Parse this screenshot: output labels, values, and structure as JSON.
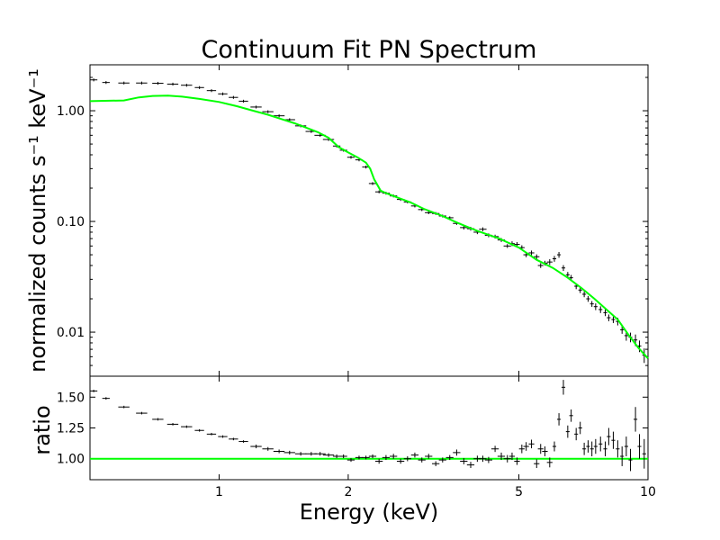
{
  "chart_data": [
    {
      "type": "scatter",
      "panel": "spectrum",
      "title": "Continuum Fit PN Spectrum",
      "ylabel": "normalized counts s⁻¹ keV⁻¹",
      "yscale": "log",
      "xscale": "log",
      "xlim": [
        0.5,
        10
      ],
      "ylim": [
        0.004,
        2.6
      ],
      "yticks": [
        0.01,
        0.1,
        1.0
      ],
      "ytick_labels": [
        "0.01",
        "0.10",
        "1.00"
      ],
      "grid": false,
      "colors": {
        "data": "#000000",
        "model": "#00ff00"
      },
      "series": [
        {
          "kind": "data-errorbars",
          "points": [
            [
              0.51,
              1.9,
              0.02,
              0.03
            ],
            [
              0.545,
              1.8,
              0.02,
              0.03
            ],
            [
              0.6,
              1.78,
              0.03,
              0.03
            ],
            [
              0.66,
              1.78,
              0.03,
              0.03
            ],
            [
              0.72,
              1.77,
              0.03,
              0.03
            ],
            [
              0.78,
              1.74,
              0.03,
              0.03
            ],
            [
              0.84,
              1.7,
              0.03,
              0.03
            ],
            [
              0.9,
              1.62,
              0.025,
              0.03
            ],
            [
              0.96,
              1.52,
              0.025,
              0.03
            ],
            [
              1.02,
              1.42,
              0.025,
              0.03
            ],
            [
              1.08,
              1.32,
              0.025,
              0.03
            ],
            [
              1.14,
              1.22,
              0.025,
              0.03
            ],
            [
              1.22,
              1.08,
              0.03,
              0.03
            ],
            [
              1.3,
              0.98,
              0.03,
              0.03
            ],
            [
              1.38,
              0.9,
              0.03,
              0.03
            ],
            [
              1.46,
              0.83,
              0.03,
              0.03
            ],
            [
              1.55,
              0.73,
              0.03,
              0.03
            ],
            [
              1.64,
              0.65,
              0.03,
              0.03
            ],
            [
              1.72,
              0.6,
              0.03,
              0.03
            ],
            [
              1.8,
              0.55,
              0.03,
              0.03
            ],
            [
              1.88,
              0.48,
              0.02,
              0.03
            ],
            [
              1.95,
              0.44,
              0.02,
              0.03
            ],
            [
              2.03,
              0.38,
              0.02,
              0.03
            ],
            [
              2.12,
              0.36,
              0.02,
              0.03
            ],
            [
              2.2,
              0.31,
              0.02,
              0.03
            ],
            [
              2.28,
              0.22,
              0.02,
              0.03
            ],
            [
              2.36,
              0.185,
              0.02,
              0.03
            ],
            [
              2.45,
              0.18,
              0.02,
              0.03
            ],
            [
              2.55,
              0.17,
              0.02,
              0.03
            ],
            [
              2.65,
              0.158,
              0.02,
              0.03
            ],
            [
              2.75,
              0.15,
              0.02,
              0.03
            ],
            [
              2.86,
              0.138,
              0.02,
              0.03
            ],
            [
              2.97,
              0.128,
              0.02,
              0.03
            ],
            [
              3.08,
              0.12,
              0.02,
              0.03
            ],
            [
              3.2,
              0.118,
              0.02,
              0.03
            ],
            [
              3.32,
              0.112,
              0.02,
              0.03
            ],
            [
              3.45,
              0.108,
              0.02,
              0.03
            ],
            [
              3.58,
              0.096,
              0.02,
              0.03
            ],
            [
              3.72,
              0.088,
              0.02,
              0.04
            ],
            [
              3.86,
              0.086,
              0.02,
              0.04
            ],
            [
              4.0,
              0.08,
              0.02,
              0.04
            ],
            [
              4.12,
              0.085,
              0.02,
              0.04
            ],
            [
              4.25,
              0.075,
              0.02,
              0.04
            ],
            [
              4.4,
              0.073,
              0.02,
              0.04
            ],
            [
              4.55,
              0.068,
              0.02,
              0.04
            ],
            [
              4.7,
              0.06,
              0.02,
              0.04
            ],
            [
              4.82,
              0.063,
              0.015,
              0.05
            ],
            [
              4.95,
              0.062,
              0.015,
              0.05
            ],
            [
              5.08,
              0.058,
              0.015,
              0.05
            ],
            [
              5.2,
              0.05,
              0.015,
              0.05
            ],
            [
              5.35,
              0.052,
              0.015,
              0.05
            ],
            [
              5.5,
              0.048,
              0.015,
              0.05
            ],
            [
              5.62,
              0.04,
              0.015,
              0.05
            ],
            [
              5.75,
              0.042,
              0.015,
              0.05
            ],
            [
              5.9,
              0.043,
              0.015,
              0.06
            ],
            [
              6.05,
              0.046,
              0.01,
              0.06
            ],
            [
              6.2,
              0.05,
              0.01,
              0.06
            ],
            [
              6.35,
              0.038,
              0.01,
              0.06
            ],
            [
              6.5,
              0.033,
              0.01,
              0.06
            ],
            [
              6.62,
              0.031,
              0.01,
              0.06
            ],
            [
              6.8,
              0.026,
              0.01,
              0.06
            ],
            [
              6.95,
              0.024,
              0.01,
              0.06
            ],
            [
              7.1,
              0.022,
              0.01,
              0.06
            ],
            [
              7.25,
              0.02,
              0.01,
              0.06
            ],
            [
              7.4,
              0.018,
              0.01,
              0.06
            ],
            [
              7.55,
              0.017,
              0.01,
              0.07
            ],
            [
              7.75,
              0.016,
              0.01,
              0.07
            ],
            [
              7.95,
              0.015,
              0.01,
              0.07
            ],
            [
              8.1,
              0.0135,
              0.01,
              0.07
            ],
            [
              8.3,
              0.013,
              0.01,
              0.07
            ],
            [
              8.5,
              0.0125,
              0.01,
              0.08
            ],
            [
              8.7,
              0.0105,
              0.01,
              0.08
            ],
            [
              8.9,
              0.0093,
              0.01,
              0.1
            ],
            [
              9.1,
              0.009,
              0.01,
              0.1
            ],
            [
              9.35,
              0.0085,
              0.01,
              0.12
            ],
            [
              9.55,
              0.0075,
              0.01,
              0.12
            ],
            [
              9.8,
              0.0062,
              0.01,
              0.15
            ]
          ]
        },
        {
          "kind": "model-line",
          "points": [
            [
              0.5,
              1.22
            ],
            [
              0.6,
              1.24
            ],
            [
              0.65,
              1.32
            ],
            [
              0.7,
              1.36
            ],
            [
              0.76,
              1.37
            ],
            [
              0.82,
              1.34
            ],
            [
              0.9,
              1.28
            ],
            [
              1.0,
              1.2
            ],
            [
              1.1,
              1.1
            ],
            [
              1.2,
              1.0
            ],
            [
              1.3,
              0.92
            ],
            [
              1.4,
              0.84
            ],
            [
              1.5,
              0.77
            ],
            [
              1.6,
              0.7
            ],
            [
              1.7,
              0.64
            ],
            [
              1.8,
              0.57
            ],
            [
              1.9,
              0.47
            ],
            [
              2.0,
              0.42
            ],
            [
              2.1,
              0.38
            ],
            [
              2.2,
              0.34
            ],
            [
              2.25,
              0.3
            ],
            [
              2.3,
              0.24
            ],
            [
              2.38,
              0.19
            ],
            [
              2.45,
              0.18
            ],
            [
              2.6,
              0.165
            ],
            [
              2.8,
              0.148
            ],
            [
              3.0,
              0.13
            ],
            [
              3.3,
              0.113
            ],
            [
              3.6,
              0.097
            ],
            [
              4.0,
              0.082
            ],
            [
              4.5,
              0.07
            ],
            [
              5.0,
              0.058
            ],
            [
              5.5,
              0.045
            ],
            [
              6.0,
              0.038
            ],
            [
              6.5,
              0.031
            ],
            [
              7.0,
              0.025
            ],
            [
              7.5,
              0.02
            ],
            [
              8.0,
              0.016
            ],
            [
              8.5,
              0.013
            ],
            [
              9.0,
              0.0095
            ],
            [
              9.5,
              0.0072
            ],
            [
              10.0,
              0.0058
            ]
          ]
        }
      ]
    },
    {
      "type": "scatter",
      "panel": "ratio",
      "xlabel": "Energy (keV)",
      "ylabel": "ratio",
      "xscale": "log",
      "xlim": [
        0.5,
        10
      ],
      "ylim": [
        0.83,
        1.67
      ],
      "xticks": [
        1,
        2,
        5,
        10
      ],
      "xtick_labels": [
        "1",
        "2",
        "5",
        "10"
      ],
      "yticks": [
        1.0,
        1.25,
        1.5
      ],
      "ytick_labels": [
        "1.00",
        "1.25",
        "1.50"
      ],
      "grid": false,
      "colors": {
        "data": "#000000",
        "model": "#00ff00"
      },
      "series": [
        {
          "kind": "data-errorbars",
          "points": [
            [
              0.51,
              1.55,
              0.01
            ],
            [
              0.545,
              1.49,
              0.01
            ],
            [
              0.6,
              1.42,
              0.01
            ],
            [
              0.66,
              1.37,
              0.01
            ],
            [
              0.72,
              1.32,
              0.01
            ],
            [
              0.78,
              1.28,
              0.01
            ],
            [
              0.84,
              1.26,
              0.01
            ],
            [
              0.9,
              1.23,
              0.01
            ],
            [
              0.96,
              1.2,
              0.01
            ],
            [
              1.02,
              1.18,
              0.01
            ],
            [
              1.08,
              1.16,
              0.01
            ],
            [
              1.14,
              1.14,
              0.01
            ],
            [
              1.22,
              1.1,
              0.015
            ],
            [
              1.3,
              1.08,
              0.015
            ],
            [
              1.38,
              1.06,
              0.015
            ],
            [
              1.46,
              1.05,
              0.015
            ],
            [
              1.55,
              1.04,
              0.015
            ],
            [
              1.64,
              1.04,
              0.015
            ],
            [
              1.72,
              1.04,
              0.015
            ],
            [
              1.8,
              1.03,
              0.015
            ],
            [
              1.88,
              1.02,
              0.015
            ],
            [
              1.95,
              1.02,
              0.015
            ],
            [
              2.03,
              0.99,
              0.015
            ],
            [
              2.12,
              1.01,
              0.015
            ],
            [
              2.2,
              1.01,
              0.015
            ],
            [
              2.28,
              1.02,
              0.015
            ],
            [
              2.36,
              0.98,
              0.02
            ],
            [
              2.45,
              1.01,
              0.02
            ],
            [
              2.55,
              1.02,
              0.02
            ],
            [
              2.65,
              0.98,
              0.02
            ],
            [
              2.75,
              1.0,
              0.02
            ],
            [
              2.86,
              1.03,
              0.02
            ],
            [
              2.97,
              0.99,
              0.02
            ],
            [
              3.08,
              1.02,
              0.02
            ],
            [
              3.2,
              0.96,
              0.02
            ],
            [
              3.32,
              0.99,
              0.02
            ],
            [
              3.45,
              1.01,
              0.02
            ],
            [
              3.58,
              1.05,
              0.025
            ],
            [
              3.72,
              0.98,
              0.025
            ],
            [
              3.86,
              0.95,
              0.025
            ],
            [
              4.0,
              1.0,
              0.025
            ],
            [
              4.12,
              1.0,
              0.025
            ],
            [
              4.25,
              0.99,
              0.025
            ],
            [
              4.4,
              1.08,
              0.025
            ],
            [
              4.55,
              1.02,
              0.03
            ],
            [
              4.7,
              1.0,
              0.03
            ],
            [
              4.82,
              1.02,
              0.03
            ],
            [
              4.95,
              0.98,
              0.03
            ],
            [
              5.08,
              1.08,
              0.035
            ],
            [
              5.2,
              1.1,
              0.035
            ],
            [
              5.35,
              1.12,
              0.035
            ],
            [
              5.5,
              0.96,
              0.035
            ],
            [
              5.62,
              1.08,
              0.04
            ],
            [
              5.75,
              1.06,
              0.04
            ],
            [
              5.9,
              0.97,
              0.04
            ],
            [
              6.05,
              1.1,
              0.04
            ],
            [
              6.2,
              1.32,
              0.05
            ],
            [
              6.35,
              1.58,
              0.06
            ],
            [
              6.5,
              1.22,
              0.05
            ],
            [
              6.62,
              1.35,
              0.05
            ],
            [
              6.8,
              1.2,
              0.05
            ],
            [
              6.95,
              1.25,
              0.05
            ],
            [
              7.1,
              1.08,
              0.05
            ],
            [
              7.25,
              1.1,
              0.05
            ],
            [
              7.4,
              1.08,
              0.06
            ],
            [
              7.55,
              1.1,
              0.06
            ],
            [
              7.75,
              1.12,
              0.06
            ],
            [
              7.95,
              1.08,
              0.06
            ],
            [
              8.1,
              1.18,
              0.07
            ],
            [
              8.3,
              1.15,
              0.07
            ],
            [
              8.5,
              1.08,
              0.07
            ],
            [
              8.7,
              1.02,
              0.08
            ],
            [
              8.9,
              1.1,
              0.08
            ],
            [
              9.1,
              0.99,
              0.09
            ],
            [
              9.35,
              1.32,
              0.1
            ],
            [
              9.55,
              1.1,
              0.1
            ],
            [
              9.8,
              1.04,
              0.12
            ]
          ]
        },
        {
          "kind": "model-line",
          "points": [
            [
              0.5,
              1.0
            ],
            [
              10,
              1.0
            ]
          ]
        }
      ]
    }
  ]
}
